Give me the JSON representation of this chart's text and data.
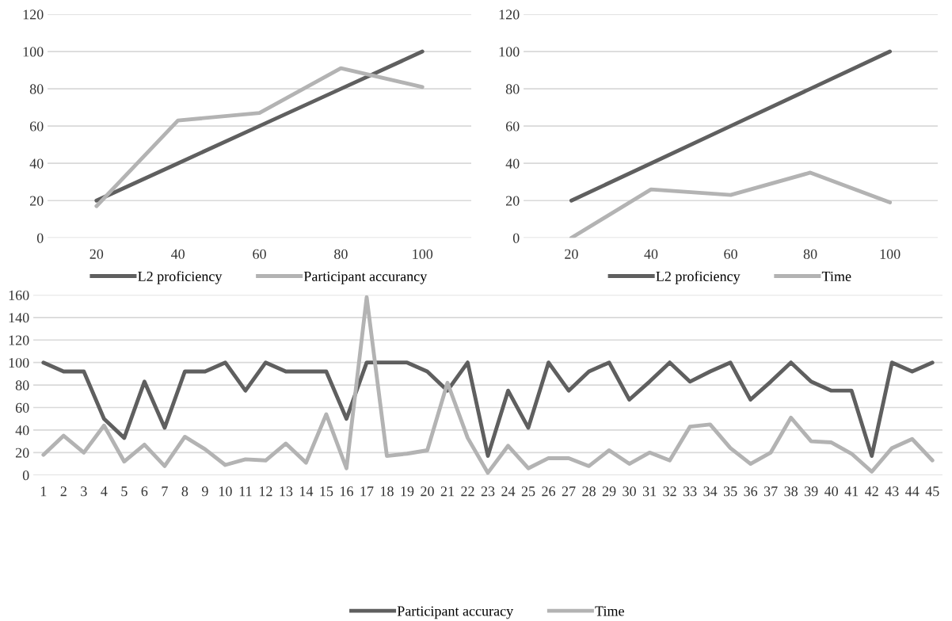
{
  "chart_data": [
    {
      "type": "line",
      "categories": [
        "20",
        "40",
        "60",
        "80",
        "100"
      ],
      "ylim": [
        0,
        120
      ],
      "yticks": [
        0,
        20,
        40,
        60,
        80,
        100,
        120
      ],
      "grid": "y",
      "legend": "bottom",
      "series": [
        {
          "name": "L2 proficiency",
          "color": "#5f5f5f",
          "values": [
            20,
            40,
            60,
            80,
            100
          ]
        },
        {
          "name": "Participant accurancy",
          "color": "#b3b3b3",
          "values": [
            17,
            63,
            67,
            91,
            81
          ]
        }
      ]
    },
    {
      "type": "line",
      "categories": [
        "20",
        "40",
        "60",
        "80",
        "100"
      ],
      "ylim": [
        0,
        120
      ],
      "yticks": [
        0,
        20,
        40,
        60,
        80,
        100,
        120
      ],
      "grid": "y",
      "legend": "bottom",
      "series": [
        {
          "name": "L2 proficiency",
          "color": "#5f5f5f",
          "values": [
            20,
            40,
            60,
            80,
            100
          ]
        },
        {
          "name": "Time",
          "color": "#b3b3b3",
          "values": [
            0,
            26,
            23,
            35,
            19
          ]
        }
      ]
    },
    {
      "type": "line",
      "categories": [
        "1",
        "2",
        "3",
        "4",
        "5",
        "6",
        "7",
        "8",
        "9",
        "10",
        "11",
        "12",
        "13",
        "14",
        "15",
        "16",
        "17",
        "18",
        "19",
        "20",
        "21",
        "22",
        "23",
        "24",
        "25",
        "26",
        "27",
        "28",
        "29",
        "30",
        "31",
        "32",
        "33",
        "34",
        "35",
        "36",
        "37",
        "38",
        "39",
        "40",
        "41",
        "42",
        "43",
        "44",
        "45"
      ],
      "ylim": [
        0,
        160
      ],
      "yticks": [
        0,
        20,
        40,
        60,
        80,
        100,
        120,
        140,
        160
      ],
      "grid": "y",
      "legend": "bottom",
      "series": [
        {
          "name": "Participant accuracy",
          "color": "#5f5f5f",
          "values": [
            100,
            92,
            92,
            50,
            33,
            83,
            42,
            92,
            92,
            100,
            75,
            100,
            92,
            92,
            92,
            50,
            100,
            100,
            100,
            92,
            75,
            100,
            17,
            75,
            42,
            100,
            75,
            92,
            100,
            67,
            83,
            100,
            83,
            92,
            100,
            67,
            83,
            100,
            83,
            75,
            75,
            17,
            100,
            92,
            100
          ]
        },
        {
          "name": "Time",
          "color": "#b3b3b3",
          "values": [
            18,
            35,
            20,
            44,
            12,
            27,
            8,
            34,
            23,
            9,
            14,
            13,
            28,
            11,
            54,
            6,
            158,
            17,
            19,
            22,
            82,
            33,
            2,
            26,
            6,
            15,
            15,
            8,
            22,
            10,
            20,
            13,
            43,
            45,
            24,
            10,
            20,
            51,
            30,
            29,
            19,
            3,
            24,
            32,
            13
          ]
        }
      ]
    }
  ]
}
